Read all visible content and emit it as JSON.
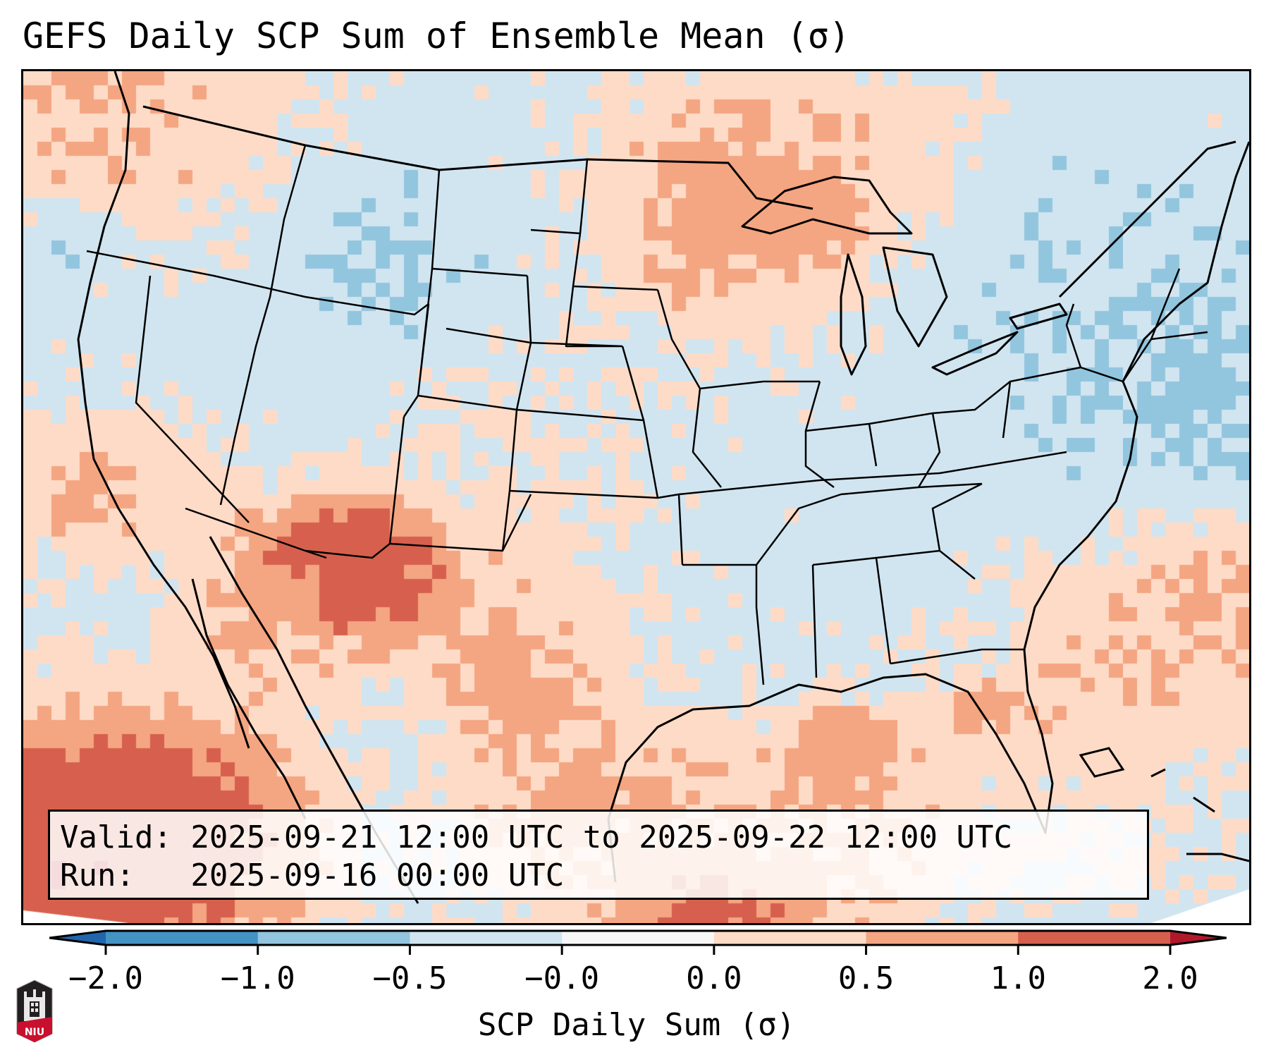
{
  "title": "GEFS Daily SCP Sum of Ensemble Mean (σ)",
  "info_box": {
    "valid_line": "Valid: 2025-09-21 12:00 UTC to 2025-09-22 12:00 UTC",
    "run_line": "Run:   2025-09-16 00:00 UTC"
  },
  "colorbar": {
    "label": "SCP Daily Sum (σ)",
    "ticks": [
      "−2.0",
      "−1.0",
      "−0.5",
      "−0.0",
      "0.0",
      "0.5",
      "1.0",
      "2.0"
    ],
    "bounds": [
      -2.0,
      -1.0,
      -0.5,
      -0.0,
      0.0,
      0.5,
      1.0,
      2.0
    ],
    "colors": [
      "#4393c3",
      "#92c5de",
      "#d1e5f0",
      "#f7f7f7",
      "#fddbc7",
      "#f4a582",
      "#d6604d"
    ],
    "under_color": "#2166ac",
    "over_color": "#b2182b",
    "extend": "both"
  },
  "map": {
    "region": "Contiguous United States",
    "field": "SCP daily sum of ensemble mean, standardized anomaly",
    "boundaries": [
      "coastlines",
      "country borders",
      "state borders"
    ]
  },
  "logo": {
    "text": "NIU",
    "icon": "university-tower-logo"
  },
  "chart_data": {
    "type": "heatmap",
    "title": "GEFS Daily SCP Sum of Ensemble Mean (σ)",
    "colorbar_label": "SCP Daily Sum (σ)",
    "levels": [
      -2.0,
      -1.0,
      -0.5,
      -0.0,
      0.0,
      0.5,
      1.0,
      2.0
    ],
    "level_colors": [
      "#2166ac",
      "#4393c3",
      "#92c5de",
      "#d1e5f0",
      "#f7f7f7",
      "#fddbc7",
      "#f4a582",
      "#d6604d",
      "#b2182b"
    ],
    "regions": [
      {
        "name": "Pacific Northwest coast / offshore",
        "value": 1.0
      },
      {
        "name": "Great Basin / Northern Rockies",
        "value": -0.25
      },
      {
        "name": "Idaho / Montana pockets",
        "value": -0.75
      },
      {
        "name": "Wyoming pockets",
        "value": -0.75
      },
      {
        "name": "Southern California offshore",
        "value": 0.75
      },
      {
        "name": "Far SW Pacific (Baja offshore)",
        "value": 2.5
      },
      {
        "name": "Arizona / New Mexico",
        "value": 1.5
      },
      {
        "name": "West Texas / Southern Plains",
        "value": 1.0
      },
      {
        "name": "Central Plains (NE/KS/SD)",
        "value": 0.3
      },
      {
        "name": "Northern Minnesota / Ontario",
        "value": 1.2
      },
      {
        "name": "Lake Superior",
        "value": 1.0
      },
      {
        "name": "Midwest / Ohio Valley",
        "value": -0.25
      },
      {
        "name": "Southeast US",
        "value": -0.25
      },
      {
        "name": "Northeast US / New England",
        "value": -0.6
      },
      {
        "name": "Western Atlantic offshore",
        "value": -0.75
      },
      {
        "name": "Southeast Atlantic offshore",
        "value": 1.0
      },
      {
        "name": "Gulf of Mexico",
        "value": 1.0
      },
      {
        "name": "Eastern Gulf core",
        "value": 2.5
      }
    ]
  }
}
